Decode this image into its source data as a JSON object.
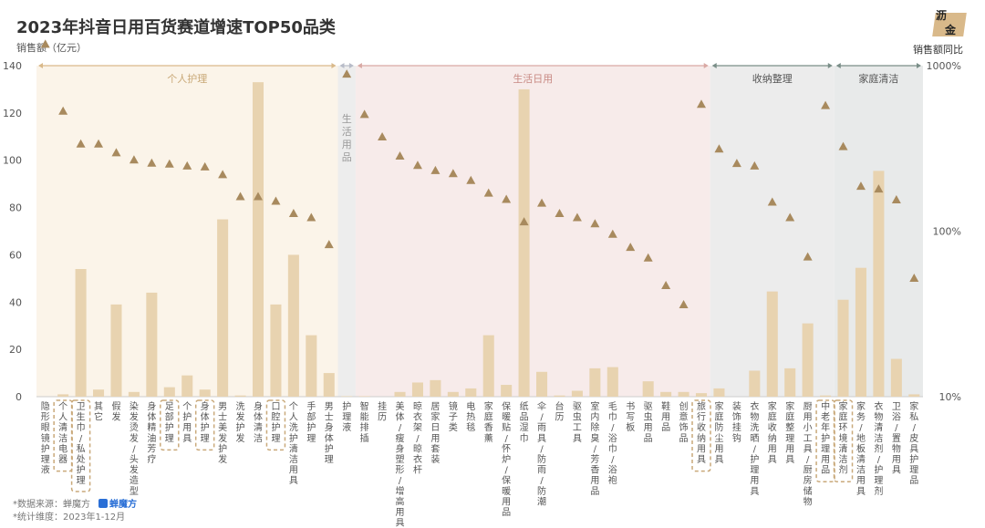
{
  "title": "2023年抖音日用百货赛道增速TOP50品类",
  "left_axis_label": "销售额（亿元）",
  "right_axis_label": "销售额同比",
  "logo": {
    "line1": "沥",
    "line2": "金"
  },
  "footer": {
    "source": "*数据来源：蝉魔方",
    "brand": "蝉魔方",
    "period": "*统计维度：2023年1-12月"
  },
  "colors": {
    "bar": "#e8d3b0",
    "marker": "#a88a5e",
    "personal_care_bg": "#fbf4e9",
    "gap_bg": "#ededed",
    "daily_bg": "#f7ebea",
    "storage_bg": "#ececec",
    "cleaning_bg": "#e8eaea",
    "highlight_box": "#c9a97a"
  },
  "chart_data": {
    "type": "bar",
    "ylim": [
      0,
      140
    ],
    "y_ticks": [
      0,
      20,
      40,
      60,
      80,
      100,
      120,
      140
    ],
    "y2_scale": "log",
    "y2_ticks": [
      "10%",
      "100%",
      "1000%"
    ],
    "y2lim": [
      10,
      1000
    ],
    "groups": [
      {
        "name": "个人护理",
        "start": 0,
        "end": 16,
        "bg": "personal_care_bg",
        "arrow": "#d9b98a"
      },
      {
        "name": "生活用品",
        "start": 17,
        "end": 17,
        "bg": "gap_bg",
        "arrow": "#b8bcc8",
        "vertical": true
      },
      {
        "name": "生活日用",
        "start": 18,
        "end": 37,
        "bg": "daily_bg",
        "arrow": "#d9a9a4"
      },
      {
        "name": "收纳整理",
        "start": 38,
        "end": 44,
        "bg": "storage_bg",
        "arrow": "#7a8e88"
      },
      {
        "name": "家庭清洁",
        "start": 45,
        "end": 49,
        "bg": "cleaning_bg",
        "arrow": "#7a8e88"
      }
    ],
    "categories": [
      "隐形眼镜护理液",
      "个人清洁电器",
      "卫生巾/私处护理",
      "其它",
      "假发",
      "染发烫发/头发造型",
      "身体精油芳疗",
      "足部护理",
      "个护用具",
      "身体护理",
      "男士美发护发",
      "洗发护发",
      "身体清洁",
      "口腔护理",
      "个人洗护清洁用具",
      "手部护理",
      "男士身体护理",
      "护理液",
      "智能排插",
      "挂历",
      "美体/瘦身塑形/增高用具",
      "晾衣架/晾衣杆",
      "居家日用套装",
      "镜子类",
      "电热毯",
      "家庭香薰",
      "保暖贴/怀炉/保暖用品",
      "纸品湿巾",
      "伞/雨具/防雨/防潮",
      "台历",
      "驱虫工具",
      "室内除臭/芳香用品",
      "毛巾/浴巾/浴袍",
      "书写板",
      "驱虫用品",
      "鞋用品",
      "创意饰品",
      "旅行收纳用具",
      "家庭防尘用具",
      "装饰挂钩",
      "衣物洗晒/护理用具",
      "家庭收纳用具",
      "家庭整理用具",
      "厨用小工具/厨房储物",
      "中老年护理用品",
      "家庭环境清洁剂",
      "家务/地板清洁用具",
      "衣物清洁剂/护理剂",
      "卫浴/置物用具",
      "家私/皮具护理品"
    ],
    "sales": [
      0,
      1,
      54,
      3,
      39,
      2,
      44,
      4,
      9,
      3,
      75,
      0.5,
      133,
      39,
      60,
      26,
      10,
      0.2,
      0.2,
      0,
      2,
      6,
      7,
      2,
      3.5,
      26,
      5,
      130,
      10.5,
      0.5,
      2.5,
      12,
      12.5,
      0,
      6.5,
      2,
      2,
      1.5,
      3.5,
      0,
      11,
      44.5,
      12,
      31,
      0.5,
      41,
      54.5,
      95.5,
      16,
      1
    ],
    "yoy_percent": [
      1350,
      532,
      337,
      337,
      298,
      270,
      258,
      255,
      248,
      245,
      220,
      162,
      162,
      152,
      128,
      121,
      83,
      890,
      508,
      372,
      285,
      250,
      233,
      223,
      203,
      170,
      156,
      114,
      148,
      128,
      121,
      111,
      96,
      80,
      69,
      47,
      36,
      585,
      314,
      257,
      248,
      150,
      121,
      70,
      575,
      325,
      187,
      180,
      155,
      52
    ],
    "highlighted_indices": [
      1,
      2,
      7,
      9,
      13,
      37,
      44,
      45
    ]
  }
}
